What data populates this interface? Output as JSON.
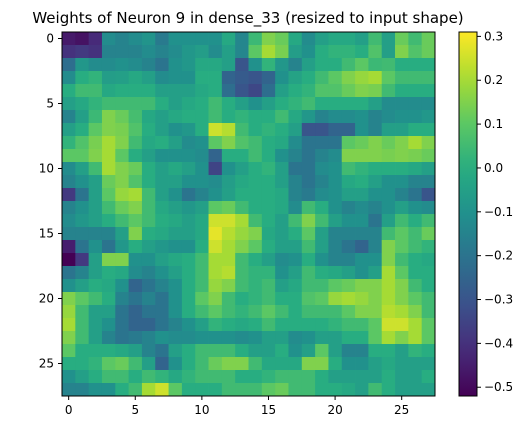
{
  "chart_data": {
    "type": "heatmap",
    "title": "Weights of Neuron 9 in dense_33 (resized to input shape)",
    "xlabel": "",
    "ylabel": "",
    "colormap": "viridis",
    "x_ticks": [
      0,
      5,
      10,
      15,
      20,
      25
    ],
    "y_ticks": [
      0,
      5,
      10,
      15,
      20,
      25
    ],
    "x_range": [
      -0.5,
      27.5
    ],
    "y_range": [
      27.5,
      -0.5
    ],
    "colorbar": {
      "min": -0.52,
      "max": 0.31,
      "ticks": [
        0.3,
        0.2,
        0.1,
        0.0,
        -0.1,
        -0.2,
        -0.3,
        -0.4,
        -0.5
      ],
      "tick_labels": [
        "0.3",
        "0.2",
        "0.1",
        "0.0",
        "−0.1",
        "−0.2",
        "−0.3",
        "−0.4",
        "−0.5"
      ]
    },
    "rows": 28,
    "cols": 28,
    "values": [
      [
        -0.46,
        -0.48,
        -0.42,
        -0.12,
        -0.15,
        -0.12,
        -0.09,
        -0.18,
        -0.1,
        -0.1,
        -0.1,
        -0.1,
        -0.02,
        -0.14,
        0.04,
        0.15,
        0.12,
        -0.02,
        -0.12,
        -0.05,
        -0.02,
        -0.02,
        -0.05,
        0.05,
        -0.05,
        0.12,
        0.05,
        0.12
      ],
      [
        -0.4,
        -0.38,
        -0.4,
        -0.15,
        -0.15,
        -0.15,
        -0.12,
        -0.15,
        -0.12,
        -0.08,
        -0.06,
        -0.12,
        -0.05,
        -0.14,
        0.1,
        0.2,
        0.14,
        -0.06,
        -0.1,
        0.0,
        0.02,
        0.02,
        0.0,
        0.08,
        -0.05,
        0.15,
        0.08,
        0.12
      ],
      [
        -0.22,
        -0.08,
        -0.12,
        -0.12,
        -0.1,
        -0.12,
        -0.15,
        -0.2,
        -0.1,
        -0.08,
        -0.02,
        -0.02,
        -0.05,
        -0.3,
        -0.1,
        0.02,
        -0.08,
        -0.15,
        -0.05,
        0.0,
        0.0,
        0.05,
        0.1,
        0.04,
        0.05,
        0.0,
        0.0,
        0.0
      ],
      [
        -0.12,
        0.0,
        0.02,
        -0.06,
        -0.05,
        -0.02,
        -0.05,
        -0.12,
        -0.1,
        -0.1,
        0.0,
        0.0,
        -0.25,
        -0.28,
        -0.3,
        -0.25,
        -0.1,
        -0.04,
        0.0,
        0.05,
        0.1,
        0.15,
        0.18,
        0.2,
        0.1,
        0.05,
        0.05,
        0.05
      ],
      [
        0.0,
        0.05,
        0.05,
        -0.02,
        0.0,
        0.0,
        0.0,
        -0.05,
        -0.05,
        -0.05,
        -0.02,
        0.0,
        -0.22,
        -0.3,
        -0.34,
        -0.22,
        -0.05,
        0.0,
        0.02,
        0.08,
        0.08,
        0.12,
        0.15,
        0.14,
        0.05,
        0.0,
        0.0,
        0.0
      ],
      [
        -0.05,
        -0.02,
        0.02,
        0.05,
        0.05,
        0.05,
        0.05,
        0.0,
        -0.05,
        -0.02,
        0.0,
        0.05,
        0.0,
        -0.05,
        -0.1,
        -0.05,
        0.0,
        0.02,
        0.05,
        0.0,
        0.0,
        0.0,
        0.0,
        -0.05,
        -0.12,
        -0.12,
        -0.12,
        -0.12
      ],
      [
        -0.15,
        -0.05,
        0.04,
        0.15,
        0.12,
        0.06,
        -0.02,
        -0.05,
        -0.02,
        0.0,
        0.0,
        0.05,
        0.0,
        0.02,
        0.0,
        0.0,
        0.05,
        -0.02,
        -0.08,
        -0.15,
        -0.12,
        -0.12,
        -0.1,
        -0.15,
        -0.12,
        -0.1,
        -0.1,
        -0.08
      ],
      [
        -0.05,
        0.0,
        0.1,
        0.15,
        0.14,
        0.08,
        0.0,
        -0.05,
        -0.1,
        -0.08,
        0.0,
        0.25,
        0.22,
        0.05,
        0.0,
        0.02,
        0.0,
        -0.05,
        -0.3,
        -0.3,
        -0.25,
        -0.25,
        -0.1,
        -0.15,
        -0.05,
        -0.05,
        0.0,
        0.0
      ],
      [
        0.02,
        0.08,
        0.14,
        0.2,
        0.15,
        0.05,
        -0.02,
        0.0,
        -0.05,
        -0.12,
        -0.1,
        0.1,
        0.15,
        0.08,
        0.05,
        0.0,
        -0.02,
        -0.12,
        -0.2,
        -0.2,
        -0.2,
        0.1,
        0.12,
        0.15,
        0.12,
        0.15,
        0.2,
        0.15
      ],
      [
        0.1,
        0.1,
        0.15,
        0.2,
        0.1,
        0.0,
        -0.05,
        -0.1,
        -0.1,
        -0.1,
        -0.12,
        -0.25,
        0.0,
        0.0,
        0.05,
        0.0,
        -0.1,
        -0.15,
        -0.2,
        -0.15,
        -0.12,
        0.15,
        0.15,
        0.15,
        0.14,
        0.15,
        0.14,
        0.12
      ],
      [
        -0.12,
        -0.05,
        0.05,
        0.2,
        0.15,
        0.12,
        0.0,
        -0.05,
        -0.02,
        -0.05,
        -0.1,
        -0.35,
        -0.1,
        -0.05,
        0.0,
        0.02,
        -0.05,
        -0.2,
        -0.2,
        -0.12,
        -0.1,
        0.05,
        0.02,
        0.0,
        0.0,
        0.0,
        -0.02,
        -0.05
      ],
      [
        -0.15,
        -0.1,
        -0.05,
        0.12,
        0.15,
        0.08,
        0.0,
        -0.05,
        -0.05,
        -0.1,
        -0.1,
        -0.12,
        -0.06,
        -0.02,
        0.0,
        0.0,
        -0.05,
        -0.15,
        -0.2,
        -0.15,
        -0.1,
        -0.02,
        0.0,
        -0.05,
        -0.1,
        -0.1,
        -0.15,
        -0.15
      ],
      [
        -0.38,
        -0.2,
        -0.05,
        0.1,
        0.18,
        0.2,
        0.05,
        -0.05,
        -0.1,
        -0.2,
        -0.15,
        -0.1,
        -0.05,
        0.0,
        0.0,
        0.0,
        -0.02,
        -0.15,
        -0.18,
        -0.12,
        -0.1,
        -0.05,
        -0.05,
        -0.1,
        -0.1,
        -0.15,
        -0.2,
        -0.3
      ],
      [
        -0.15,
        -0.1,
        -0.05,
        0.05,
        0.12,
        0.15,
        0.05,
        -0.02,
        -0.05,
        -0.08,
        -0.05,
        0.1,
        0.12,
        0.05,
        0.0,
        0.0,
        -0.02,
        -0.12,
        0.05,
        0.0,
        -0.1,
        -0.15,
        -0.12,
        -0.15,
        -0.1,
        -0.05,
        -0.1,
        -0.12
      ],
      [
        -0.12,
        -0.08,
        -0.05,
        0.0,
        0.05,
        0.1,
        0.05,
        0.0,
        -0.02,
        -0.05,
        -0.02,
        0.25,
        0.25,
        0.2,
        0.05,
        0.0,
        -0.05,
        0.05,
        0.15,
        0.05,
        -0.05,
        -0.1,
        -0.1,
        -0.2,
        -0.05,
        0.05,
        0.0,
        0.05
      ],
      [
        -0.15,
        -0.15,
        -0.15,
        -0.15,
        -0.05,
        0.15,
        0.0,
        -0.02,
        -0.05,
        -0.05,
        -0.02,
        0.28,
        0.22,
        0.18,
        0.15,
        -0.02,
        -0.05,
        0.0,
        0.1,
        -0.05,
        -0.15,
        -0.15,
        -0.15,
        -0.15,
        0.05,
        0.1,
        0.05,
        0.12
      ],
      [
        -0.45,
        -0.2,
        -0.1,
        -0.2,
        -0.08,
        0.0,
        -0.05,
        -0.08,
        -0.1,
        -0.1,
        0.0,
        0.25,
        0.2,
        0.15,
        0.1,
        0.0,
        -0.05,
        -0.05,
        0.05,
        -0.05,
        -0.15,
        -0.2,
        -0.25,
        -0.15,
        0.15,
        0.1,
        0.05,
        0.02
      ],
      [
        -0.52,
        -0.38,
        -0.05,
        0.15,
        0.15,
        -0.1,
        -0.1,
        -0.05,
        -0.02,
        0.0,
        0.05,
        0.2,
        0.2,
        0.05,
        0.0,
        -0.05,
        -0.12,
        -0.1,
        0.0,
        -0.1,
        -0.15,
        -0.15,
        -0.1,
        -0.1,
        0.15,
        0.05,
        0.0,
        -0.02
      ],
      [
        -0.2,
        -0.15,
        -0.05,
        0.0,
        -0.02,
        -0.12,
        -0.15,
        -0.1,
        -0.05,
        0.0,
        0.05,
        0.2,
        0.22,
        0.05,
        0.02,
        0.02,
        -0.1,
        -0.05,
        0.05,
        0.0,
        -0.02,
        -0.05,
        -0.1,
        -0.05,
        0.2,
        0.1,
        0.0,
        0.0
      ],
      [
        -0.1,
        -0.05,
        0.0,
        -0.02,
        -0.1,
        -0.25,
        -0.2,
        -0.15,
        -0.1,
        0.0,
        0.05,
        0.18,
        0.15,
        0.05,
        0.02,
        0.05,
        -0.05,
        -0.02,
        0.05,
        0.05,
        0.1,
        0.12,
        0.15,
        0.15,
        0.2,
        0.15,
        0.05,
        0.0
      ],
      [
        0.15,
        0.1,
        0.05,
        0.0,
        -0.15,
        -0.2,
        -0.15,
        -0.2,
        -0.1,
        0.0,
        0.1,
        0.15,
        0.05,
        0.0,
        0.02,
        0.05,
        0.0,
        0.0,
        0.08,
        0.1,
        0.18,
        0.2,
        0.18,
        0.15,
        0.2,
        0.15,
        0.1,
        0.05
      ],
      [
        0.18,
        0.05,
        -0.05,
        -0.05,
        -0.2,
        -0.25,
        -0.2,
        -0.2,
        -0.1,
        0.0,
        0.05,
        0.1,
        0.05,
        0.02,
        0.05,
        0.1,
        0.05,
        0.0,
        0.05,
        0.05,
        0.05,
        0.1,
        0.15,
        0.15,
        0.22,
        0.2,
        0.15,
        0.05
      ],
      [
        0.2,
        0.05,
        -0.05,
        -0.1,
        -0.2,
        -0.25,
        -0.25,
        -0.2,
        -0.15,
        -0.1,
        -0.05,
        0.02,
        0.0,
        -0.02,
        0.0,
        0.05,
        0.0,
        0.0,
        0.0,
        0.0,
        0.02,
        0.05,
        0.05,
        0.1,
        0.25,
        0.25,
        0.2,
        0.1
      ],
      [
        0.15,
        0.05,
        -0.05,
        -0.15,
        -0.2,
        -0.18,
        -0.15,
        -0.1,
        -0.12,
        -0.12,
        -0.1,
        -0.1,
        -0.1,
        -0.12,
        -0.1,
        -0.05,
        -0.05,
        -0.12,
        -0.1,
        -0.05,
        -0.05,
        0.0,
        0.0,
        0.1,
        0.2,
        0.15,
        0.2,
        0.1
      ],
      [
        0.1,
        0.0,
        0.0,
        0.0,
        -0.02,
        -0.05,
        -0.15,
        -0.2,
        -0.05,
        0.0,
        0.05,
        0.05,
        0.05,
        0.0,
        -0.05,
        -0.05,
        0.0,
        -0.1,
        -0.05,
        0.1,
        -0.05,
        -0.15,
        -0.15,
        0.0,
        0.0,
        -0.05,
        0.02,
        0.0
      ],
      [
        0.0,
        0.0,
        0.02,
        0.1,
        0.12,
        0.05,
        -0.05,
        -0.25,
        -0.1,
        0.0,
        0.05,
        0.12,
        0.15,
        0.15,
        0.05,
        -0.02,
        -0.02,
        -0.02,
        0.15,
        0.15,
        0.0,
        -0.1,
        -0.1,
        -0.05,
        -0.02,
        -0.05,
        -0.05,
        -0.05
      ],
      [
        -0.1,
        -0.05,
        0.0,
        0.05,
        0.05,
        0.0,
        0.05,
        0.02,
        -0.02,
        0.02,
        0.05,
        0.05,
        0.05,
        0.0,
        0.0,
        0.02,
        0.05,
        0.05,
        0.05,
        0.0,
        -0.05,
        -0.05,
        -0.05,
        -0.05,
        0.0,
        -0.05,
        -0.05,
        0.0
      ],
      [
        -0.15,
        -0.15,
        -0.1,
        -0.1,
        0.0,
        0.05,
        0.2,
        0.25,
        0.1,
        0.0,
        0.0,
        0.0,
        0.05,
        0.05,
        0.05,
        0.1,
        0.12,
        0.05,
        0.05,
        0.0,
        0.0,
        -0.02,
        -0.05,
        0.05,
        0.0,
        -0.05,
        -0.05,
        -0.05
      ]
    ]
  }
}
